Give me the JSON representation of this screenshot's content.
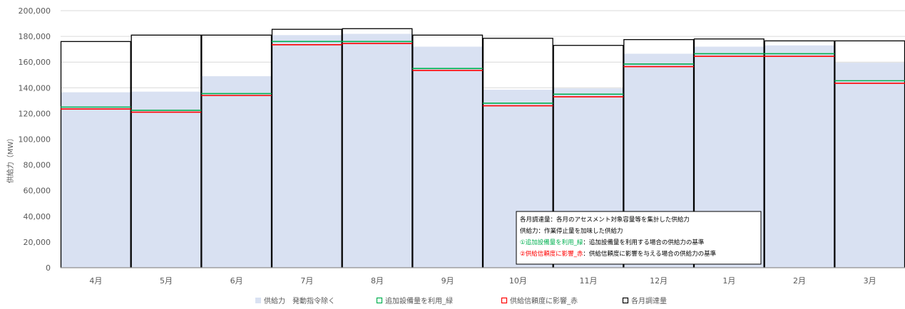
{
  "chart_data": {
    "type": "bar",
    "title": "",
    "ylabel": "供給力（MW）",
    "xlabel": "",
    "ylim": [
      0,
      200000
    ],
    "yticks": [
      0,
      20000,
      40000,
      60000,
      80000,
      100000,
      120000,
      140000,
      160000,
      180000,
      200000
    ],
    "ytick_labels": [
      "0",
      "20,000",
      "40,000",
      "60,000",
      "80,000",
      "100,000",
      "120,000",
      "140,000",
      "160,000",
      "180,000",
      "200,000"
    ],
    "categories": [
      "4月",
      "5月",
      "6月",
      "7月",
      "8月",
      "9月",
      "10月",
      "11月",
      "12月",
      "1月",
      "2月",
      "3月"
    ],
    "grid": true,
    "legend_position": "bottom",
    "series": [
      {
        "name": "供給力　発動指令除く",
        "color": "#d9e1f2",
        "style": "filled-bar",
        "values": [
          136500,
          137000,
          149000,
          181000,
          182000,
          172000,
          138500,
          139500,
          166500,
          172000,
          173000,
          159500
        ]
      },
      {
        "name": "追加設備量を利用_緑",
        "color": "#00b050",
        "style": "level-line",
        "values": [
          125000,
          122500,
          135500,
          176000,
          176000,
          155000,
          128000,
          135000,
          158500,
          166500,
          166500,
          145500
        ]
      },
      {
        "name": "供給信頼度に影響_赤",
        "color": "#ff0000",
        "style": "level-line",
        "values": [
          123500,
          121000,
          134000,
          173500,
          174500,
          153500,
          126000,
          133000,
          156500,
          164500,
          164500,
          143500
        ]
      },
      {
        "name": "各月調達量",
        "color": "#000000",
        "style": "outline-bar",
        "values": [
          176000,
          181000,
          181000,
          185500,
          186000,
          181000,
          178500,
          173000,
          177500,
          178000,
          176500,
          176500
        ]
      }
    ],
    "annotation": {
      "lines": [
        {
          "text": "各月調達量：各月のアセスメント対象容量等を集計した供給力",
          "color": "#000000"
        },
        {
          "text": "供給力：作業停止量を加味した供給力",
          "color": "#000000"
        },
        {
          "text": "①追加設備量を利用_緑",
          "color": "#00b050",
          "suffix": "：追加設備量を利用する場合の供給力の基準"
        },
        {
          "text": "②供給信頼度に影響_赤",
          "color": "#ff0000",
          "suffix": "：供給信頼度に影響を与える場合の供給力の基準"
        }
      ]
    },
    "legend": [
      {
        "label": "供給力　発動指令除く",
        "marker": "filled",
        "color": "#d9e1f2"
      },
      {
        "label": "追加設備量を利用_緑",
        "marker": "hollow",
        "color": "#00b050"
      },
      {
        "label": "供給信頼度に影響_赤",
        "marker": "hollow",
        "color": "#ff0000"
      },
      {
        "label": "各月調達量",
        "marker": "hollow",
        "color": "#000000"
      }
    ]
  }
}
